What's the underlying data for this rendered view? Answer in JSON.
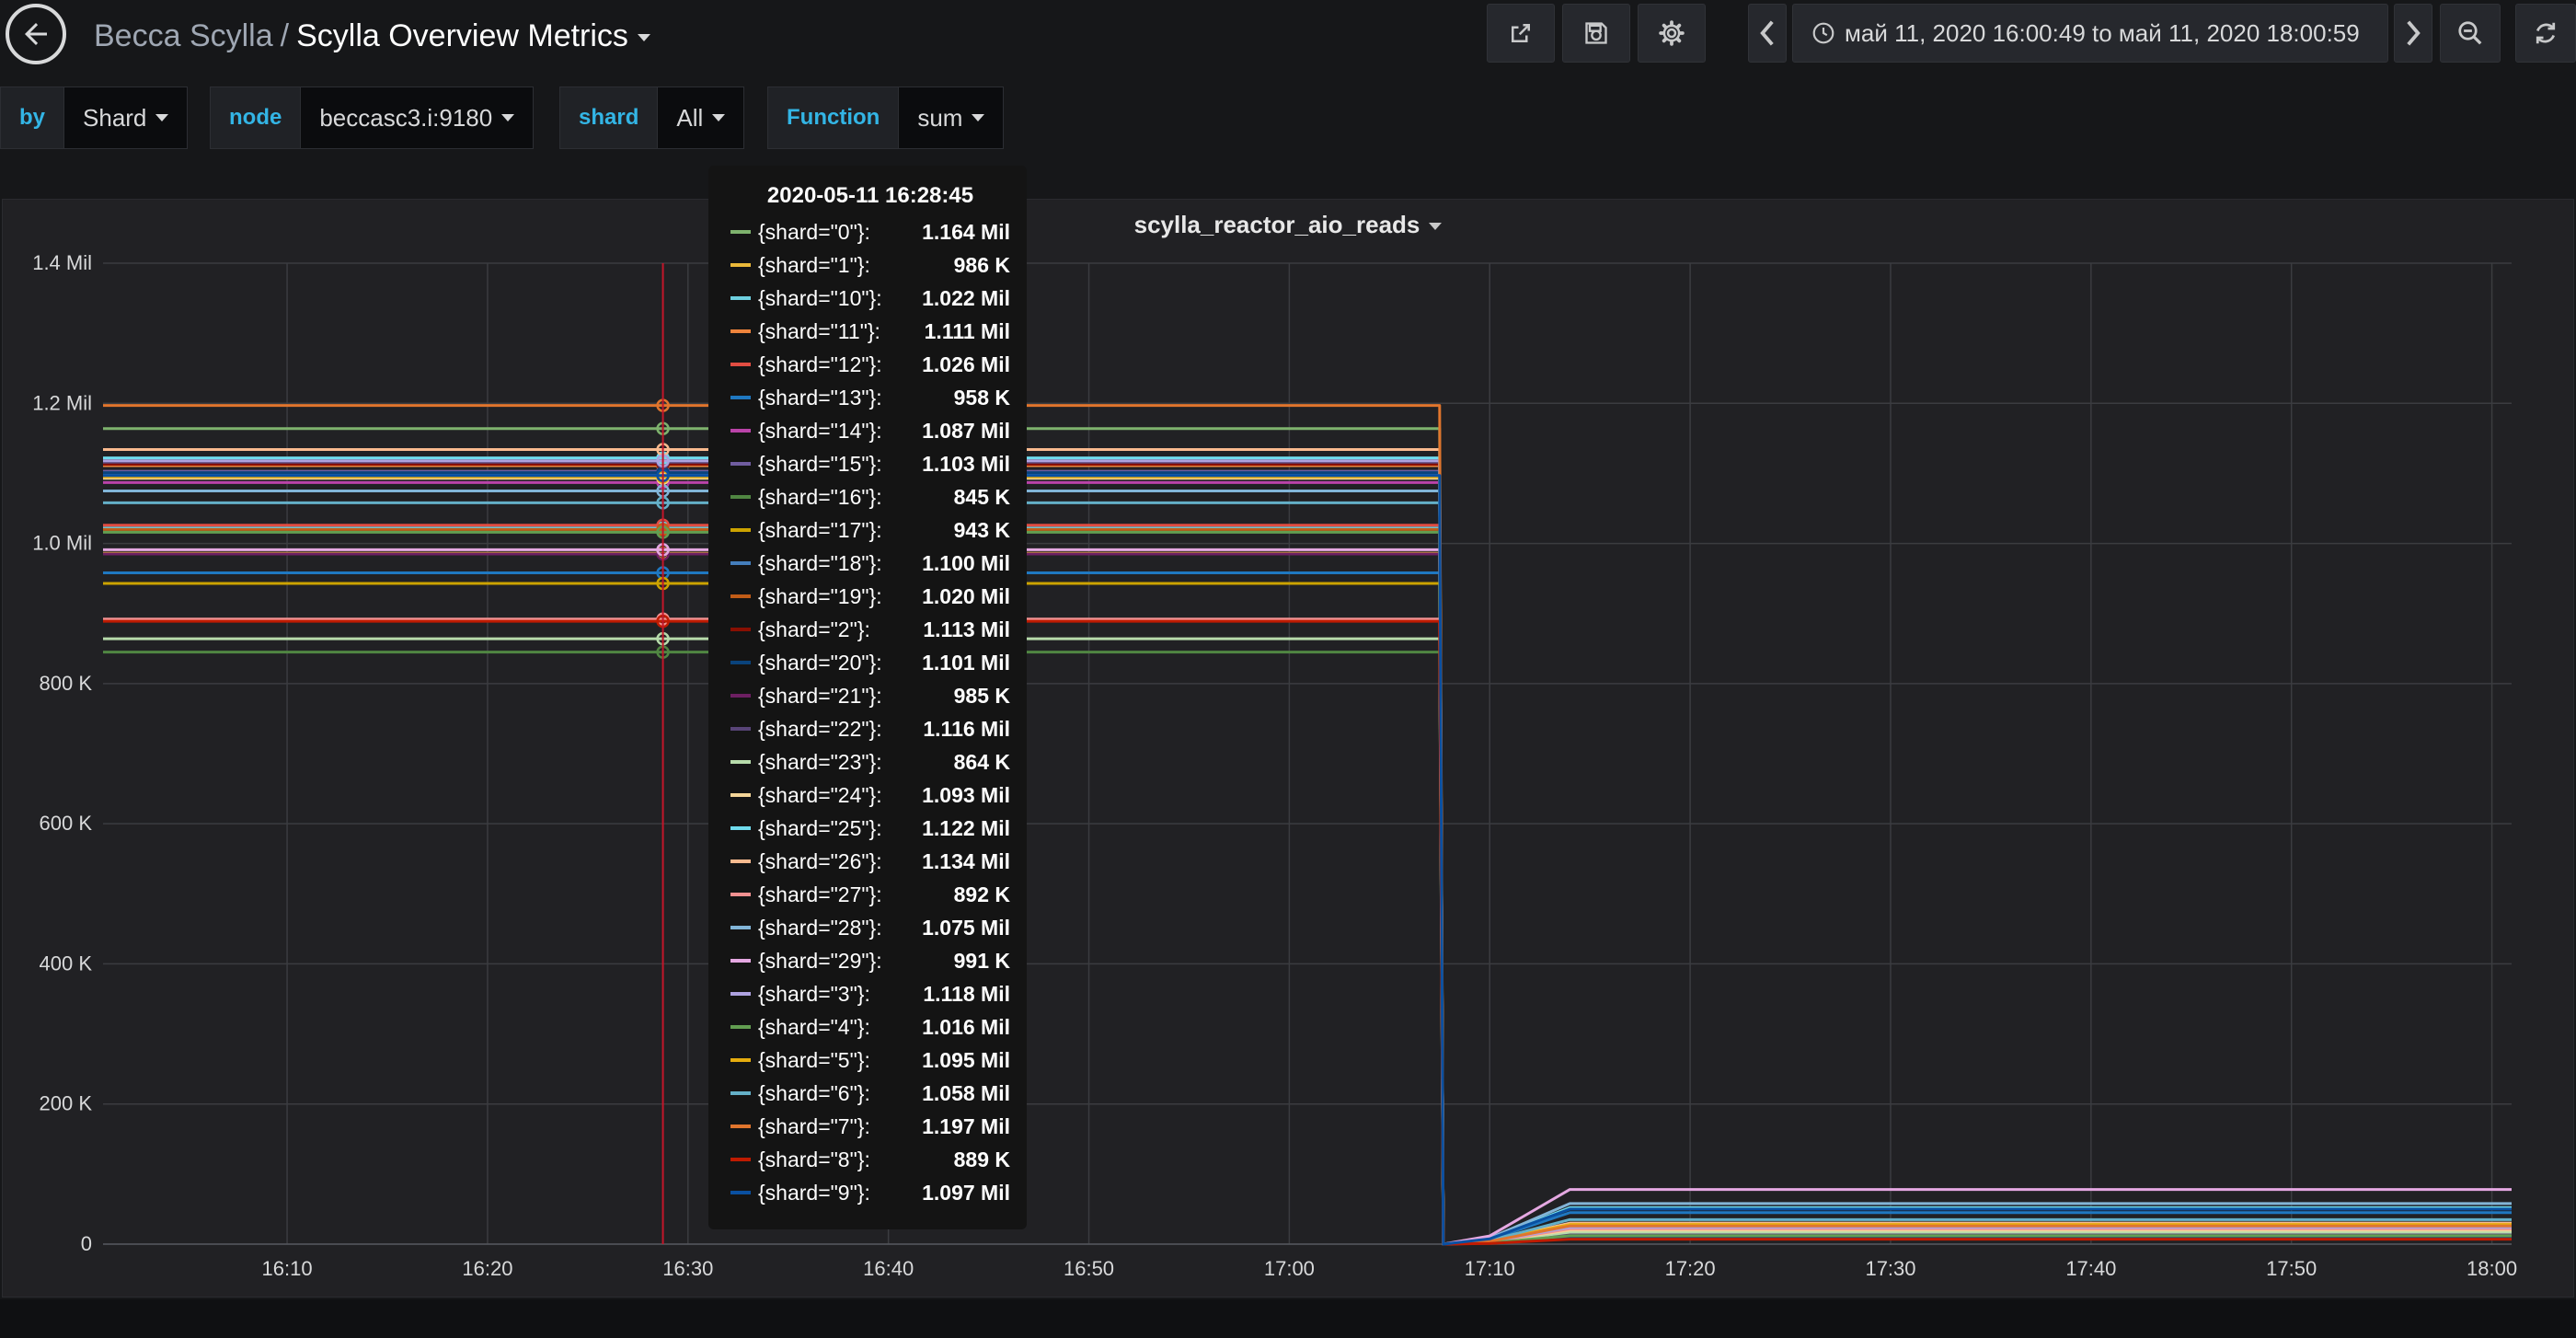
{
  "navbar": {
    "folder": "Becca Scylla",
    "separator": "/",
    "title": "Scylla Overview Metrics",
    "time_range": "май 11, 2020 16:00:49 to май 11, 2020 18:00:59"
  },
  "variables": [
    {
      "label": "by",
      "value": "Shard"
    },
    {
      "label": "node",
      "value": "beccasc3.i:9180"
    },
    {
      "label": "shard",
      "value": "All"
    },
    {
      "label": "Function",
      "value": "sum"
    }
  ],
  "panel": {
    "title": "scylla_reactor_aio_reads"
  },
  "tooltip": {
    "time": "2020-05-11 16:28:45",
    "rows": [
      {
        "name": "{shard=\"0\"}:",
        "value": "1.164 Mil",
        "color": "#7eb26d"
      },
      {
        "name": "{shard=\"1\"}:",
        "value": "986 K",
        "color": "#eab839"
      },
      {
        "name": "{shard=\"10\"}:",
        "value": "1.022 Mil",
        "color": "#6ed0e0"
      },
      {
        "name": "{shard=\"11\"}:",
        "value": "1.111 Mil",
        "color": "#ef843c"
      },
      {
        "name": "{shard=\"12\"}:",
        "value": "1.026 Mil",
        "color": "#e24d42"
      },
      {
        "name": "{shard=\"13\"}:",
        "value": "958 K",
        "color": "#1f78c1"
      },
      {
        "name": "{shard=\"14\"}:",
        "value": "1.087 Mil",
        "color": "#ba43a9"
      },
      {
        "name": "{shard=\"15\"}:",
        "value": "1.103 Mil",
        "color": "#705da0"
      },
      {
        "name": "{shard=\"16\"}:",
        "value": "845 K",
        "color": "#508642"
      },
      {
        "name": "{shard=\"17\"}:",
        "value": "943 K",
        "color": "#cca300"
      },
      {
        "name": "{shard=\"18\"}:",
        "value": "1.100 Mil",
        "color": "#447ebc"
      },
      {
        "name": "{shard=\"19\"}:",
        "value": "1.020 Mil",
        "color": "#c15c17"
      },
      {
        "name": "{shard=\"2\"}:",
        "value": "1.113 Mil",
        "color": "#890f02"
      },
      {
        "name": "{shard=\"20\"}:",
        "value": "1.101 Mil",
        "color": "#0a437c"
      },
      {
        "name": "{shard=\"21\"}:",
        "value": "985 K",
        "color": "#6d1f62"
      },
      {
        "name": "{shard=\"22\"}:",
        "value": "1.116 Mil",
        "color": "#584477"
      },
      {
        "name": "{shard=\"23\"}:",
        "value": "864 K",
        "color": "#b7dbab"
      },
      {
        "name": "{shard=\"24\"}:",
        "value": "1.093 Mil",
        "color": "#f4d598"
      },
      {
        "name": "{shard=\"25\"}:",
        "value": "1.122 Mil",
        "color": "#70dbed"
      },
      {
        "name": "{shard=\"26\"}:",
        "value": "1.134 Mil",
        "color": "#f9ba8f"
      },
      {
        "name": "{shard=\"27\"}:",
        "value": "892 K",
        "color": "#f29191"
      },
      {
        "name": "{shard=\"28\"}:",
        "value": "1.075 Mil",
        "color": "#82b5d8"
      },
      {
        "name": "{shard=\"29\"}:",
        "value": "991 K",
        "color": "#e5a8e2"
      },
      {
        "name": "{shard=\"3\"}:",
        "value": "1.118 Mil",
        "color": "#aea2e0"
      },
      {
        "name": "{shard=\"4\"}:",
        "value": "1.016 Mil",
        "color": "#629e51"
      },
      {
        "name": "{shard=\"5\"}:",
        "value": "1.095 Mil",
        "color": "#e5ac0e"
      },
      {
        "name": "{shard=\"6\"}:",
        "value": "1.058 Mil",
        "color": "#64b0c8"
      },
      {
        "name": "{shard=\"7\"}:",
        "value": "1.197 Mil",
        "color": "#e0752d"
      },
      {
        "name": "{shard=\"8\"}:",
        "value": "889 K",
        "color": "#bf1b00"
      },
      {
        "name": "{shard=\"9\"}:",
        "value": "1.097 Mil",
        "color": "#0a50a1"
      }
    ]
  },
  "chart_data": {
    "type": "line",
    "title": "scylla_reactor_aio_reads",
    "x_ticks": [
      "16:10",
      "16:20",
      "16:30",
      "16:40",
      "16:50",
      "17:00",
      "17:10",
      "17:20",
      "17:30",
      "17:40",
      "17:50",
      "18:00"
    ],
    "y_ticks": [
      "0",
      "200 K",
      "400 K",
      "600 K",
      "800 K",
      "1.0 Mil",
      "1.2 Mil",
      "1.4 Mil"
    ],
    "y_tick_values": [
      0,
      200000,
      400000,
      600000,
      800000,
      1000000,
      1200000,
      1400000
    ],
    "ylim": [
      0,
      1400000
    ],
    "xlim": [
      "16:00:49",
      "18:00:59"
    ],
    "grid": true,
    "hover_time": "16:28:45",
    "drop_time": "17:07:30",
    "series": [
      {
        "name": "{shard=\"0\"}",
        "before": 1164000,
        "after": 15000
      },
      {
        "name": "{shard=\"1\"}",
        "before": 986000,
        "after": 12000
      },
      {
        "name": "{shard=\"10\"}",
        "before": 1022000,
        "after": 14000
      },
      {
        "name": "{shard=\"11\"}",
        "before": 1111000,
        "after": 16000
      },
      {
        "name": "{shard=\"12\"}",
        "before": 1026000,
        "after": 13000
      },
      {
        "name": "{shard=\"13\"}",
        "before": 958000,
        "after": 45000
      },
      {
        "name": "{shard=\"14\"}",
        "before": 1087000,
        "after": 18000
      },
      {
        "name": "{shard=\"15\"}",
        "before": 1103000,
        "after": 20000
      },
      {
        "name": "{shard=\"16\"}",
        "before": 845000,
        "after": 10000
      },
      {
        "name": "{shard=\"17\"}",
        "before": 943000,
        "after": 11000
      },
      {
        "name": "{shard=\"18\"}",
        "before": 1100000,
        "after": 22000
      },
      {
        "name": "{shard=\"19\"}",
        "before": 1020000,
        "after": 25000
      },
      {
        "name": "{shard=\"2\"}",
        "before": 1113000,
        "after": 8000
      },
      {
        "name": "{shard=\"20\"}",
        "before": 1101000,
        "after": 9000
      },
      {
        "name": "{shard=\"21\"}",
        "before": 985000,
        "after": 12000
      },
      {
        "name": "{shard=\"22\"}",
        "before": 1116000,
        "after": 14000
      },
      {
        "name": "{shard=\"23\"}",
        "before": 864000,
        "after": 17000
      },
      {
        "name": "{shard=\"24\"}",
        "before": 1093000,
        "after": 20000
      },
      {
        "name": "{shard=\"25\"}",
        "before": 1122000,
        "after": 52000
      },
      {
        "name": "{shard=\"26\"}",
        "before": 1134000,
        "after": 30000
      },
      {
        "name": "{shard=\"27\"}",
        "before": 892000,
        "after": 22000
      },
      {
        "name": "{shard=\"28\"}",
        "before": 1075000,
        "after": 58000
      },
      {
        "name": "{shard=\"29\"}",
        "before": 991000,
        "after": 78000
      },
      {
        "name": "{shard=\"3\"}",
        "before": 1118000,
        "after": 24000
      },
      {
        "name": "{shard=\"4\"}",
        "before": 1016000,
        "after": 12000
      },
      {
        "name": "{shard=\"5\"}",
        "before": 1095000,
        "after": 28000
      },
      {
        "name": "{shard=\"6\"}",
        "before": 1058000,
        "after": 35000
      },
      {
        "name": "{shard=\"7\"}",
        "before": 1197000,
        "after": 26000
      },
      {
        "name": "{shard=\"8\"}",
        "before": 889000,
        "after": 7000
      },
      {
        "name": "{shard=\"9\"}",
        "before": 1097000,
        "after": 50000
      }
    ]
  }
}
